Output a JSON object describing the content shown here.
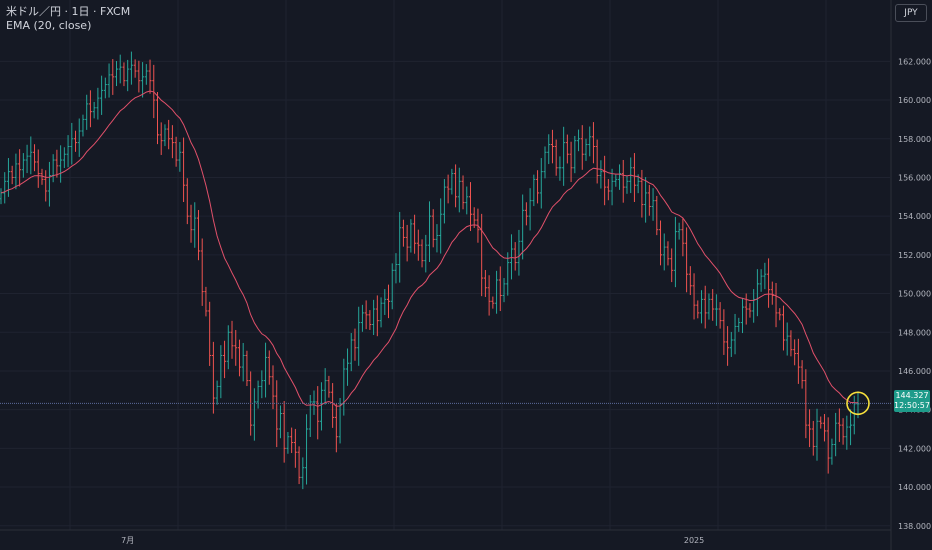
{
  "header": {
    "symbol": "米ドル／円 · 1日 · FXCM",
    "indicator": "EMA (20, close)",
    "currency_button": "JPY"
  },
  "last_price": {
    "value": "144.327",
    "countdown": "12:50:57"
  },
  "colors": {
    "background": "#151924",
    "up": "#26a69a",
    "down": "#ef5350",
    "ema": "#e0506a",
    "highlight": "#f7e03c",
    "grid": "#1f2330"
  },
  "chart_data": {
    "type": "ohlc",
    "title": "",
    "xlabel": "",
    "ylabel": "",
    "ylim": [
      137.0,
      163.0
    ],
    "y_ticks": [
      "162.000",
      "160.000",
      "158.000",
      "156.000",
      "154.000",
      "152.000",
      "150.000",
      "148.000",
      "146.000",
      "144.000",
      "142.000",
      "140.000",
      "138.000"
    ],
    "x_ticks": [
      {
        "label": "7月",
        "bar": 34
      },
      {
        "label": "2025",
        "bar": 186
      }
    ],
    "grid": true,
    "series": [
      {
        "type": "ohlc",
        "close": [
          155.2,
          155.8,
          156.3,
          156.0,
          156.7,
          156.4,
          156.9,
          157.1,
          157.3,
          156.8,
          156.2,
          155.9,
          155.3,
          156.1,
          156.9,
          156.6,
          156.9,
          157.2,
          157.6,
          158.0,
          157.8,
          158.4,
          159.0,
          159.8,
          159.4,
          159.6,
          160.1,
          160.5,
          160.8,
          161.3,
          161.2,
          161.6,
          161.7,
          161.0,
          161.6,
          161.8,
          161.5,
          161.0,
          161.2,
          161.5,
          161.0,
          160.0,
          158.2,
          157.9,
          158.5,
          158.0,
          157.8,
          156.9,
          157.3,
          155.6,
          154.0,
          153.3,
          153.9,
          152.2,
          150.1,
          149.1,
          146.8,
          144.6,
          145.2,
          146.8,
          146.5,
          148.0,
          147.3,
          147.2,
          146.2,
          146.8,
          145.5,
          143.2,
          144.4,
          145.2,
          145.5,
          146.7,
          145.7,
          144.7,
          143.0,
          143.8,
          142.0,
          142.6,
          142.3,
          141.8,
          140.5,
          141.0,
          143.0,
          144.4,
          144.4,
          143.4,
          145.0,
          145.5,
          144.9,
          143.6,
          142.6,
          144.3,
          146.1,
          146.4,
          147.6,
          147.2,
          148.5,
          149.0,
          148.9,
          148.4,
          149.2,
          148.6,
          149.5,
          149.7,
          149.6,
          151.2,
          151.5,
          153.4,
          152.9,
          152.4,
          153.6,
          152.6,
          152.5,
          151.7,
          152.5,
          154.0,
          152.8,
          153.0,
          154.1,
          155.5,
          155.4,
          156.2,
          155.0,
          155.8,
          154.7,
          155.0,
          154.1,
          153.8,
          153.3,
          150.8,
          150.3,
          149.6,
          149.5,
          150.7,
          149.9,
          150.5,
          151.6,
          152.3,
          151.6,
          152.7,
          154.3,
          154.0,
          154.8,
          155.9,
          155.2,
          156.3,
          157.3,
          157.7,
          157.6,
          156.5,
          156.5,
          157.8,
          157.2,
          156.5,
          157.9,
          158.0,
          157.2,
          157.7,
          158.1,
          157.6,
          156.1,
          156.3,
          155.5,
          155.3,
          155.8,
          155.9,
          156.2,
          155.5,
          155.8,
          156.5,
          155.6,
          155.8,
          154.6,
          155.2,
          154.5,
          154.8,
          153.3,
          152.0,
          152.4,
          151.8,
          151.2,
          153.2,
          153.3,
          152.6,
          151.0,
          150.4,
          149.4,
          149.0,
          149.7,
          149.0,
          149.7,
          149.2,
          149.2,
          148.6,
          147.5,
          147.2,
          147.6,
          148.3,
          148.5,
          149.3,
          149.2,
          149.1,
          149.7,
          150.5,
          150.9,
          151.0,
          150.2,
          149.9,
          149.0,
          148.9,
          147.6,
          147.8,
          147.1,
          146.9,
          146.2,
          145.5,
          143.2,
          143.0,
          142.1,
          143.4,
          143.3,
          142.9,
          141.5,
          142.2,
          143.3,
          143.2,
          142.6,
          143.1,
          143.2,
          144.3,
          144.3
        ],
        "name": ""
      },
      {
        "type": "line",
        "name": "",
        "period": 20
      }
    ]
  }
}
